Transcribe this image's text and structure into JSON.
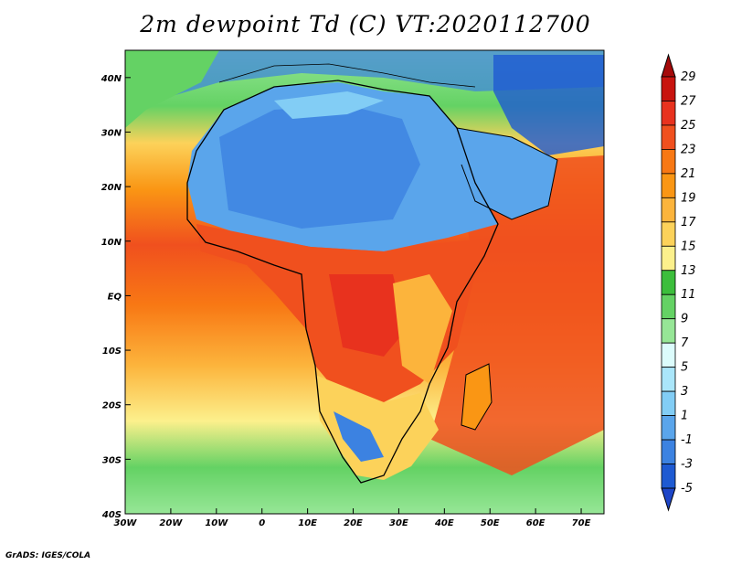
{
  "title": "2m dewpoint Td (C) VT:2020112700",
  "credit": "GrADS: IGES/COLA",
  "map": {
    "lon_range": [
      -30,
      75
    ],
    "lat_range": [
      -40,
      45
    ],
    "lon_ticks": [
      {
        "value": -30,
        "label": "30W"
      },
      {
        "value": -20,
        "label": "20W"
      },
      {
        "value": -10,
        "label": "10W"
      },
      {
        "value": 0,
        "label": "0"
      },
      {
        "value": 10,
        "label": "10E"
      },
      {
        "value": 20,
        "label": "20E"
      },
      {
        "value": 30,
        "label": "30E"
      },
      {
        "value": 40,
        "label": "40E"
      },
      {
        "value": 50,
        "label": "50E"
      },
      {
        "value": 60,
        "label": "60E"
      },
      {
        "value": 70,
        "label": "70E"
      }
    ],
    "lat_ticks": [
      {
        "value": 40,
        "label": "40N"
      },
      {
        "value": 30,
        "label": "30N"
      },
      {
        "value": 20,
        "label": "20N"
      },
      {
        "value": 10,
        "label": "10N"
      },
      {
        "value": 0,
        "label": "EQ"
      },
      {
        "value": -10,
        "label": "10S"
      },
      {
        "value": -20,
        "label": "20S"
      },
      {
        "value": -30,
        "label": "30S"
      },
      {
        "value": -40,
        "label": "40S"
      }
    ]
  },
  "colorbar": {
    "levels": [
      "29",
      "27",
      "25",
      "23",
      "21",
      "19",
      "17",
      "15",
      "13",
      "11",
      "9",
      "7",
      "5",
      "3",
      "1",
      "-1",
      "-3",
      "-5"
    ],
    "colors": [
      "#a50a0a",
      "#c8140f",
      "#e8321e",
      "#f0501e",
      "#f87814",
      "#fa9614",
      "#fcb43c",
      "#fcd25a",
      "#fcf08c",
      "#3cbe3c",
      "#64d264",
      "#96e696",
      "#dcfcfc",
      "#aae6fa",
      "#82cdf5",
      "#5aa5eb",
      "#3c82e1",
      "#1e5ad2",
      "#1e46c8"
    ]
  }
}
